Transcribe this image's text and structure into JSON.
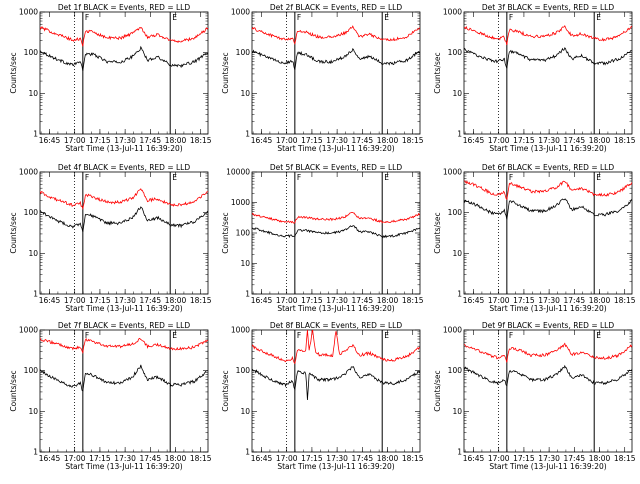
{
  "figure": {
    "ylabel": "Counts/sec",
    "xlabel": "Start Time (13-Jul-11 16:39:20)",
    "x_ticks": [
      "16:45",
      "17:00",
      "17:15",
      "17:30",
      "17:45",
      "18:00",
      "18:15"
    ],
    "y_ticks": [
      "1",
      "10",
      "100",
      "1000"
    ],
    "marker_labels": [
      "F",
      "E"
    ],
    "colors": {
      "events": "#000000",
      "lld": "#ff0000"
    }
  },
  "chart_data": [
    {
      "type": "line",
      "title": "Det 1f BLACK = Events, RED = LLD",
      "xlabel": "Start Time (13-Jul-11 16:39:20)",
      "ylabel": "Counts/sec",
      "x_range_minutes_after_start": [
        0,
        100
      ],
      "ylim": [
        1,
        1000
      ],
      "y_scale": "log",
      "dotted_line_min": 20.5,
      "f_line_min": 25.5,
      "e_line_min": 77.5,
      "series": [
        {
          "name": "BLACK = Events",
          "x": [
            0,
            8,
            16,
            20,
            24,
            25.5,
            27,
            32,
            40,
            48,
            55,
            60,
            64,
            70,
            77.5,
            84,
            92,
            100
          ],
          "y": [
            110,
            75,
            55,
            50,
            62,
            35,
            95,
            90,
            60,
            58,
            80,
            130,
            65,
            80,
            50,
            48,
            60,
            100
          ]
        },
        {
          "name": "RED = LLD",
          "x": [
            0,
            8,
            16,
            20,
            24,
            25.5,
            27,
            32,
            40,
            48,
            55,
            60,
            64,
            70,
            77.5,
            84,
            92,
            100
          ],
          "y": [
            420,
            310,
            230,
            200,
            220,
            150,
            340,
            320,
            230,
            230,
            300,
            430,
            240,
            280,
            200,
            190,
            230,
            400
          ]
        }
      ]
    },
    {
      "type": "line",
      "title": "Det 2f BLACK = Events, RED = LLD",
      "xlabel": "Start Time (13-Jul-11 16:39:20)",
      "ylabel": "Counts/sec",
      "x_range_minutes_after_start": [
        0,
        100
      ],
      "ylim": [
        1,
        1000
      ],
      "y_scale": "log",
      "dotted_line_min": 20.5,
      "f_line_min": 25.5,
      "e_line_min": 77.5,
      "series": [
        {
          "name": "BLACK = Events",
          "x": [
            0,
            8,
            16,
            20,
            24,
            25.5,
            27,
            32,
            40,
            48,
            55,
            60,
            64,
            70,
            77.5,
            84,
            92,
            100
          ],
          "y": [
            110,
            80,
            60,
            55,
            65,
            40,
            100,
            90,
            60,
            60,
            80,
            120,
            70,
            80,
            55,
            55,
            65,
            110
          ]
        },
        {
          "name": "RED = LLD",
          "x": [
            0,
            8,
            16,
            20,
            24,
            25.5,
            27,
            32,
            40,
            48,
            55,
            60,
            64,
            70,
            77.5,
            84,
            92,
            100
          ],
          "y": [
            400,
            300,
            230,
            210,
            230,
            160,
            350,
            320,
            240,
            240,
            300,
            420,
            250,
            280,
            210,
            210,
            240,
            420
          ]
        }
      ]
    },
    {
      "type": "line",
      "title": "Det 3f BLACK = Events, RED = LLD",
      "xlabel": "Start Time (13-Jul-11 16:39:20)",
      "ylabel": "Counts/sec",
      "x_range_minutes_after_start": [
        0,
        100
      ],
      "ylim": [
        1,
        1000
      ],
      "y_scale": "log",
      "dotted_line_min": 20.5,
      "f_line_min": 25.5,
      "e_line_min": 77.5,
      "series": [
        {
          "name": "BLACK = Events",
          "x": [
            0,
            8,
            16,
            20,
            24,
            25.5,
            27,
            32,
            40,
            48,
            55,
            60,
            64,
            70,
            77.5,
            84,
            92,
            100
          ],
          "y": [
            120,
            85,
            65,
            60,
            70,
            40,
            110,
            95,
            65,
            65,
            85,
            130,
            70,
            85,
            55,
            55,
            70,
            110
          ]
        },
        {
          "name": "RED = LLD",
          "x": [
            0,
            8,
            16,
            20,
            24,
            25.5,
            27,
            32,
            40,
            48,
            55,
            60,
            64,
            70,
            77.5,
            84,
            92,
            100
          ],
          "y": [
            420,
            320,
            240,
            220,
            240,
            160,
            360,
            330,
            250,
            250,
            310,
            440,
            260,
            290,
            220,
            210,
            250,
            430
          ]
        }
      ]
    },
    {
      "type": "line",
      "title": "Det 4f BLACK = Events, RED = LLD",
      "xlabel": "Start Time (13-Jul-11 16:39:20)",
      "ylabel": "Counts/sec",
      "x_range_minutes_after_start": [
        0,
        100
      ],
      "ylim": [
        1,
        1000
      ],
      "y_scale": "log",
      "dotted_line_min": 20.5,
      "f_line_min": 25.5,
      "e_line_min": 77.5,
      "series": [
        {
          "name": "BLACK = Events",
          "x": [
            0,
            8,
            16,
            20,
            24,
            25.5,
            27,
            32,
            40,
            48,
            55,
            60,
            64,
            70,
            77.5,
            84,
            92,
            100
          ],
          "y": [
            110,
            70,
            50,
            45,
            55,
            35,
            95,
            80,
            55,
            55,
            75,
            140,
            65,
            75,
            50,
            48,
            60,
            110
          ]
        },
        {
          "name": "RED = LLD",
          "x": [
            0,
            8,
            16,
            20,
            24,
            25.5,
            27,
            32,
            40,
            48,
            55,
            60,
            64,
            70,
            77.5,
            84,
            92,
            100
          ],
          "y": [
            320,
            220,
            170,
            150,
            170,
            120,
            280,
            240,
            180,
            180,
            230,
            380,
            200,
            220,
            160,
            155,
            190,
            330
          ]
        }
      ]
    },
    {
      "type": "line",
      "title": "Det 5f BLACK = Events, RED = LLD",
      "xlabel": "Start Time (13-Jul-11 16:39:20)",
      "ylabel": "Counts/sec",
      "x_range_minutes_after_start": [
        0,
        100
      ],
      "ylim": [
        1,
        10000
      ],
      "y_scale": "log",
      "dotted_line_min": 20.5,
      "f_line_min": 25.5,
      "e_line_min": 77.5,
      "series": [
        {
          "name": "BLACK = Events",
          "x": [
            0,
            8,
            16,
            20,
            24,
            25.5,
            27,
            32,
            40,
            48,
            55,
            60,
            64,
            70,
            77.5,
            84,
            92,
            100
          ],
          "y": [
            150,
            110,
            85,
            80,
            80,
            75,
            120,
            120,
            100,
            100,
            120,
            180,
            110,
            110,
            75,
            80,
            100,
            150
          ]
        },
        {
          "name": "RED = LLD",
          "x": [
            0,
            8,
            16,
            20,
            24,
            25.5,
            27,
            32,
            40,
            48,
            55,
            60,
            64,
            70,
            77.5,
            84,
            92,
            100
          ],
          "y": [
            420,
            320,
            250,
            230,
            230,
            220,
            330,
            320,
            280,
            280,
            330,
            480,
            300,
            300,
            230,
            240,
            280,
            420
          ]
        }
      ]
    },
    {
      "type": "line",
      "title": "Det 6f BLACK = Events, RED = LLD",
      "xlabel": "Start Time (13-Jul-11 16:39:20)",
      "ylabel": "Counts/sec",
      "x_range_minutes_after_start": [
        0,
        100
      ],
      "ylim": [
        1,
        1000
      ],
      "y_scale": "log",
      "dotted_line_min": 20.5,
      "f_line_min": 25.5,
      "e_line_min": 77.5,
      "series": [
        {
          "name": "BLACK = Events",
          "x": [
            0,
            8,
            16,
            20,
            24,
            25.5,
            27,
            32,
            40,
            48,
            55,
            60,
            64,
            70,
            77.5,
            84,
            92,
            100
          ],
          "y": [
            200,
            150,
            100,
            90,
            110,
            70,
            200,
            160,
            110,
            110,
            150,
            230,
            120,
            140,
            90,
            90,
            110,
            200
          ]
        },
        {
          "name": "RED = LLD",
          "x": [
            0,
            8,
            16,
            20,
            24,
            25.5,
            27,
            32,
            40,
            48,
            55,
            60,
            64,
            70,
            77.5,
            84,
            92,
            100
          ],
          "y": [
            600,
            450,
            300,
            280,
            320,
            200,
            550,
            450,
            330,
            330,
            420,
            600,
            350,
            400,
            280,
            270,
            320,
            560
          ]
        }
      ]
    },
    {
      "type": "line",
      "title": "Det 7f BLACK = Events, RED = LLD",
      "xlabel": "Start Time (13-Jul-11 16:39:20)",
      "ylabel": "Counts/sec",
      "x_range_minutes_after_start": [
        0,
        100
      ],
      "ylim": [
        1,
        1000
      ],
      "y_scale": "log",
      "dotted_line_min": 20.5,
      "f_line_min": 25.5,
      "e_line_min": 77.5,
      "series": [
        {
          "name": "BLACK = Events",
          "x": [
            0,
            8,
            16,
            20,
            24,
            25.5,
            27,
            32,
            40,
            48,
            55,
            60,
            64,
            70,
            77.5,
            84,
            92,
            100
          ],
          "y": [
            100,
            65,
            45,
            40,
            50,
            30,
            90,
            75,
            50,
            50,
            70,
            130,
            60,
            70,
            45,
            45,
            55,
            100
          ]
        },
        {
          "name": "RED = LLD",
          "x": [
            0,
            8,
            16,
            20,
            24,
            25.5,
            27,
            32,
            40,
            48,
            55,
            60,
            64,
            70,
            77.5,
            84,
            92,
            100
          ],
          "y": [
            600,
            480,
            380,
            350,
            380,
            280,
            600,
            500,
            400,
            400,
            450,
            620,
            400,
            430,
            350,
            340,
            380,
            550
          ]
        }
      ]
    },
    {
      "type": "line",
      "title": "Det 8f BLACK = Events, RED = LLD",
      "xlabel": "Start Time (13-Jul-11 16:39:20)",
      "ylabel": "Counts/sec",
      "x_range_minutes_after_start": [
        0,
        100
      ],
      "ylim": [
        1,
        1000
      ],
      "y_scale": "log",
      "dotted_line_min": 20.5,
      "f_line_min": 25.5,
      "e_line_min": 77.5,
      "series": [
        {
          "name": "BLACK = Events",
          "x": [
            0,
            8,
            16,
            20,
            24,
            25.5,
            27,
            32,
            33,
            34,
            40,
            48,
            55,
            60,
            64,
            70,
            77.5,
            84,
            92,
            100
          ],
          "y": [
            110,
            70,
            50,
            45,
            55,
            35,
            95,
            85,
            20,
            85,
            60,
            60,
            80,
            130,
            65,
            80,
            50,
            48,
            60,
            100
          ]
        },
        {
          "name": "RED = LLD",
          "x": [
            0,
            8,
            16,
            20,
            24,
            25.5,
            27,
            32,
            33,
            34,
            36,
            38,
            40,
            48,
            50,
            52,
            55,
            60,
            64,
            70,
            77.5,
            84,
            92,
            100
          ],
          "y": [
            400,
            280,
            200,
            180,
            200,
            140,
            330,
            300,
            1000,
            300,
            1000,
            280,
            250,
            230,
            1000,
            260,
            290,
            420,
            240,
            270,
            190,
            180,
            220,
            380
          ]
        }
      ]
    },
    {
      "type": "line",
      "title": "Det 9f BLACK = Events, RED = LLD",
      "xlabel": "Start Time (13-Jul-11 16:39:20)",
      "ylabel": "Counts/sec",
      "x_range_minutes_after_start": [
        0,
        100
      ],
      "ylim": [
        1,
        1000
      ],
      "y_scale": "log",
      "dotted_line_min": 20.5,
      "f_line_min": 25.5,
      "e_line_min": 77.5,
      "series": [
        {
          "name": "BLACK = Events",
          "x": [
            0,
            8,
            16,
            20,
            24,
            25.5,
            27,
            32,
            40,
            48,
            55,
            60,
            64,
            70,
            77.5,
            84,
            92,
            100
          ],
          "y": [
            120,
            80,
            55,
            50,
            60,
            40,
            100,
            90,
            60,
            60,
            80,
            130,
            65,
            80,
            50,
            50,
            62,
            110
          ]
        },
        {
          "name": "RED = LLD",
          "x": [
            0,
            8,
            16,
            20,
            24,
            25.5,
            27,
            32,
            40,
            48,
            55,
            60,
            64,
            70,
            77.5,
            84,
            92,
            100
          ],
          "y": [
            430,
            320,
            230,
            210,
            230,
            160,
            360,
            330,
            240,
            240,
            310,
            450,
            250,
            280,
            210,
            200,
            240,
            420
          ]
        }
      ]
    }
  ]
}
